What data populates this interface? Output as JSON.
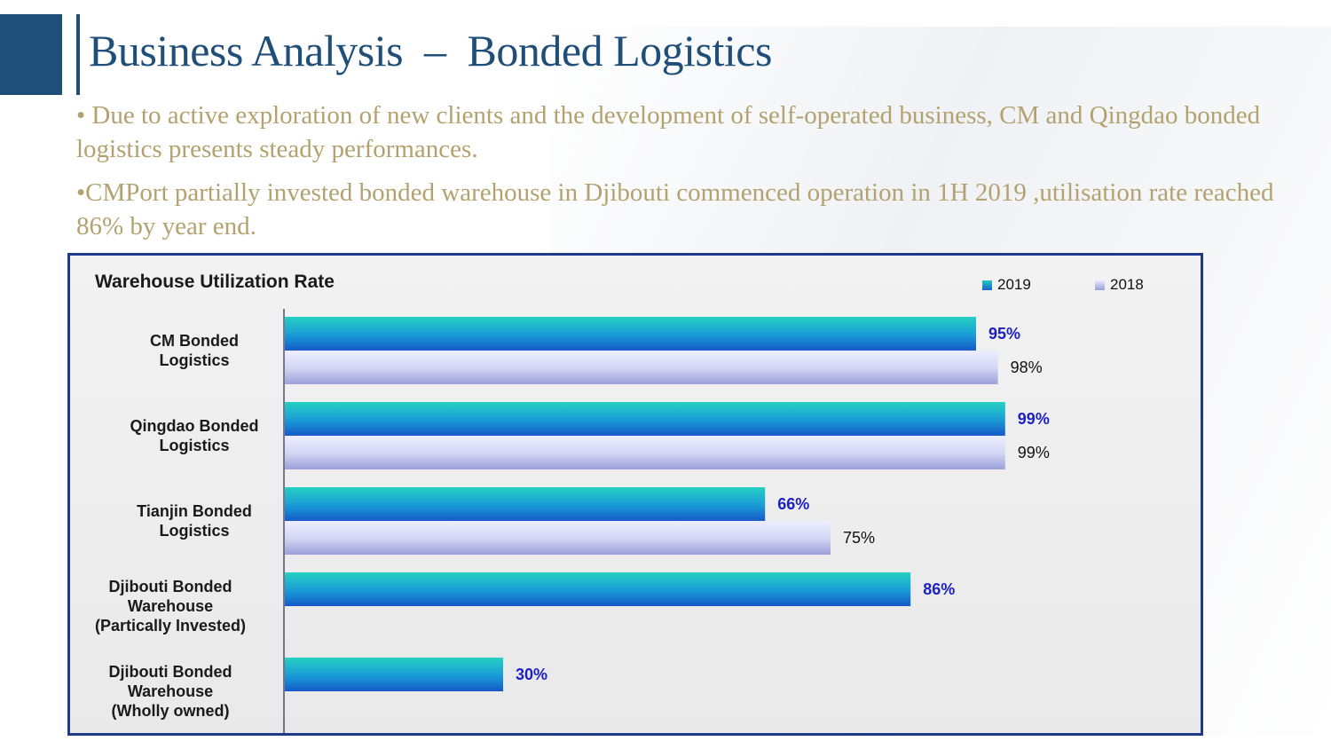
{
  "header": {
    "title": "Business Analysis  –  Bonded Logistics"
  },
  "bullets": [
    "• Due to active exploration of new clients and the development of self-operated business, CM and Qingdao bonded logistics presents steady performances.",
    "•CMPort partially invested bonded warehouse in Djibouti commenced operation in 1H 2019 ,utilisation rate reached 86% by year end."
  ],
  "colors": {
    "brand": "#1f4e79",
    "bullet_text": "#b3a26f",
    "frame": "#1f3a8a",
    "series_2019_top": "#25c9c0",
    "series_2019_bottom": "#1565c9",
    "series_2018_top": "#e6e8ff",
    "series_2018_bottom": "#9a9fd6",
    "label_2019": "#1c1fc4"
  },
  "chart_data": {
    "type": "bar",
    "orientation": "horizontal",
    "title": "Warehouse Utilization Rate",
    "xlabel": "",
    "ylabel": "",
    "xlim": [
      0,
      100
    ],
    "grid": false,
    "legend_position": "top-right",
    "categories": [
      [
        "CM Bonded",
        "Logistics"
      ],
      [
        "Qingdao Bonded",
        "Logistics"
      ],
      [
        "Tianjin Bonded",
        "Logistics"
      ],
      [
        "Djibouti Bonded",
        "Warehouse",
        "(Partically Invested)"
      ],
      [
        "Djibouti Bonded",
        "Warehouse",
        "(Wholly owned)"
      ]
    ],
    "series": [
      {
        "name": "2019",
        "values": [
          95,
          99,
          66,
          86,
          30
        ],
        "labels": [
          "95%",
          "99%",
          "66%",
          "86%",
          "30%"
        ]
      },
      {
        "name": "2018",
        "values": [
          98,
          99,
          75,
          null,
          null
        ],
        "labels": [
          "98%",
          "99%",
          "75%",
          "",
          ""
        ]
      }
    ]
  }
}
